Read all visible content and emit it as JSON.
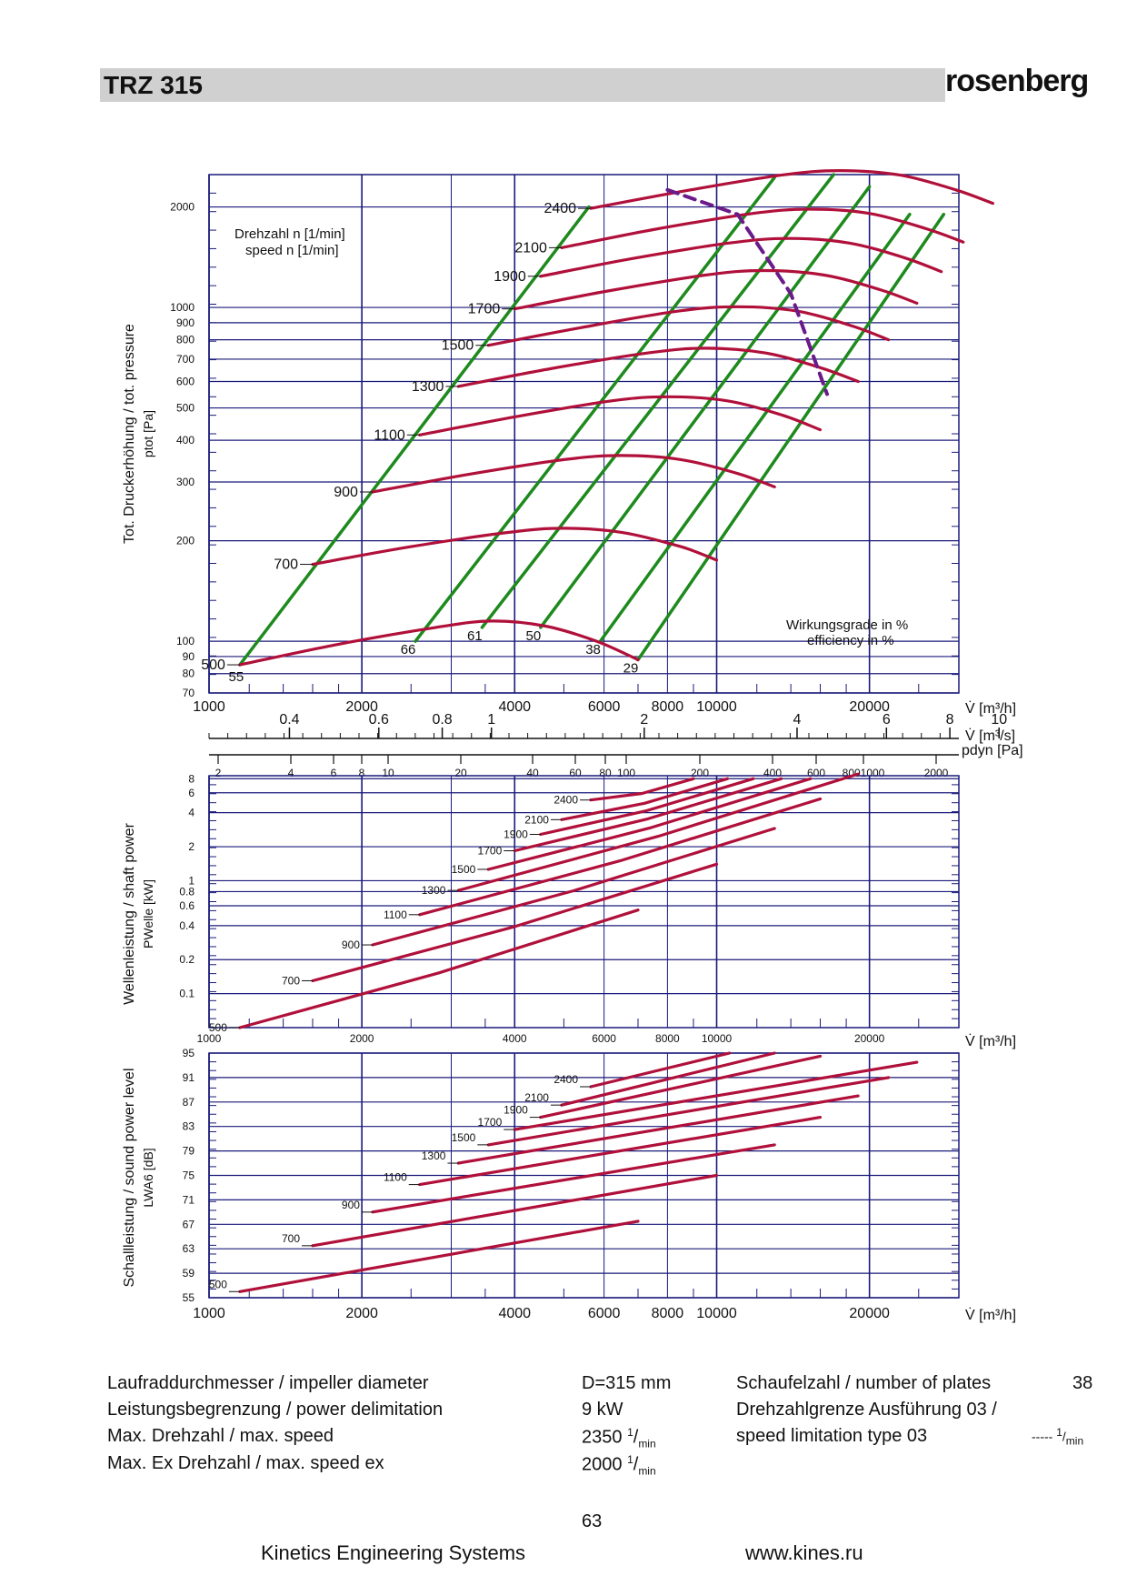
{
  "header": {
    "title": "TRZ 315",
    "logo": "rosenberg"
  },
  "chart_data": [
    {
      "type": "line",
      "ylabel": "Tot. Druckerhöhung / tot. pressure",
      "ylabel2": "ptot [Pa]",
      "xlabel": "V̇ [m³/h]",
      "xlabel_ms": "V̇ [m³/s]",
      "xlabel_pdyn": "pdyn [Pa]",
      "speed_label_de": "Drehzahl n [1/min]",
      "speed_label_en": "speed n [1/min]",
      "eff_label_de": "Wirkungsgrade in %",
      "eff_label_en": "efficiency in %",
      "x_scale": "log",
      "y_scale": "log",
      "xlim": [
        1000,
        30000
      ],
      "ylim": [
        70,
        2500
      ],
      "x_ticks": [
        "1000",
        "2000",
        "4000",
        "6000",
        "8000",
        "10000",
        "20000"
      ],
      "x_ticks_ms": [
        "0.4",
        "0.6",
        "0.8",
        "1",
        "2",
        "4",
        "6",
        "8",
        "10"
      ],
      "x_ticks_pdyn": [
        "2",
        "4",
        "6",
        "8",
        "10",
        "20",
        "40",
        "60",
        "80",
        "100",
        "200",
        "400",
        "600",
        "8001000",
        "2000"
      ],
      "y_ticks": [
        "2000",
        "1000",
        "900",
        "800",
        "700",
        "600",
        "500",
        "400",
        "300",
        "200",
        "100",
        "90",
        "80",
        "70"
      ],
      "series": [
        {
          "name": "500",
          "x": [
            1150,
            1800,
            2800,
            3600,
            4600,
            5800,
            7000
          ],
          "y": [
            85,
            98,
            110,
            115,
            111,
            100,
            88
          ]
        },
        {
          "name": "700",
          "x": [
            1600,
            2500,
            3900,
            5000,
            6500,
            8500,
            10000
          ],
          "y": [
            170,
            192,
            212,
            218,
            212,
            192,
            175
          ]
        },
        {
          "name": "900",
          "x": [
            2100,
            3200,
            5000,
            6500,
            8500,
            11000,
            13000
          ],
          "y": [
            280,
            315,
            350,
            360,
            350,
            318,
            290
          ]
        },
        {
          "name": "1100",
          "x": [
            2600,
            4000,
            6200,
            8000,
            10500,
            13500,
            16000
          ],
          "y": [
            415,
            470,
            525,
            540,
            525,
            475,
            430
          ]
        },
        {
          "name": "1300",
          "x": [
            3100,
            4700,
            7300,
            9500,
            12500,
            16000,
            19000
          ],
          "y": [
            580,
            655,
            730,
            755,
            730,
            660,
            600
          ]
        },
        {
          "name": "1500",
          "x": [
            3550,
            5400,
            8400,
            11000,
            14400,
            18500,
            21800
          ],
          "y": [
            770,
            870,
            975,
            1005,
            975,
            880,
            800
          ]
        },
        {
          "name": "1700",
          "x": [
            4000,
            6100,
            9500,
            12400,
            16300,
            21000,
            24800
          ],
          "y": [
            990,
            1120,
            1250,
            1290,
            1250,
            1130,
            1030
          ]
        },
        {
          "name": "1900",
          "x": [
            4500,
            6800,
            10600,
            13900,
            18200,
            23400,
            27700
          ],
          "y": [
            1240,
            1400,
            1560,
            1610,
            1560,
            1410,
            1280
          ]
        },
        {
          "name": "2100",
          "x": [
            4950,
            7500,
            11700,
            15300,
            20100,
            25900,
            30600
          ],
          "y": [
            1510,
            1710,
            1910,
            1970,
            1910,
            1720,
            1570
          ]
        },
        {
          "name": "2400",
          "x": [
            5650,
            8600,
            13400,
            17500,
            23000,
            29600,
            35000
          ],
          "y": [
            1980,
            2230,
            2490,
            2570,
            2490,
            2250,
            2050
          ]
        }
      ],
      "efficiency_lines": [
        {
          "name": "55",
          "x": [
            1150,
            5600
          ],
          "y": [
            85,
            2000
          ]
        },
        {
          "name": "66",
          "x": [
            2550,
            13000
          ],
          "y": [
            100,
            2450
          ]
        },
        {
          "name": "61",
          "x": [
            3450,
            17000
          ],
          "y": [
            110,
            2500
          ]
        },
        {
          "name": "50",
          "x": [
            4500,
            20000
          ],
          "y": [
            110,
            2300
          ]
        },
        {
          "name": "38",
          "x": [
            5900,
            24000
          ],
          "y": [
            100,
            1900
          ]
        },
        {
          "name": "29",
          "x": [
            7000,
            28000
          ],
          "y": [
            88,
            1900
          ]
        }
      ],
      "speed_limit": {
        "x": [
          8000,
          11000,
          14000,
          16500
        ],
        "y": [
          2250,
          1900,
          1100,
          550
        ]
      },
      "series_labels": [
        "500",
        "700",
        "900",
        "1100",
        "1300",
        "1500",
        "1700",
        "1900",
        "2100",
        "2400"
      ]
    },
    {
      "type": "line",
      "ylabel": "Wellenleistung / shaft power",
      "ylabel2": "PWelle [kW]",
      "xlabel": "V̇ [m³/h]",
      "x_scale": "log",
      "y_scale": "log",
      "xlim": [
        1000,
        30000
      ],
      "ylim": [
        0.05,
        8
      ],
      "x_ticks": [
        "1000",
        "2000",
        "4000",
        "6000",
        "8000",
        "10000",
        "20000"
      ],
      "y_ticks": [
        "8",
        "6",
        "4",
        "2",
        "1",
        "0.8",
        "0.6",
        "0.4",
        "0.2",
        "0.1"
      ],
      "series": [
        {
          "name": "500",
          "x": [
            1150,
            7000
          ],
          "y": [
            0.05,
            0.55
          ]
        },
        {
          "name": "700",
          "x": [
            1600,
            10000
          ],
          "y": [
            0.13,
            1.4
          ]
        },
        {
          "name": "900",
          "x": [
            2100,
            13000
          ],
          "y": [
            0.27,
            2.9
          ]
        },
        {
          "name": "1100",
          "x": [
            2600,
            16000
          ],
          "y": [
            0.5,
            5.3
          ]
        },
        {
          "name": "1300",
          "x": [
            3100,
            19000
          ],
          "y": [
            0.82,
            8.8
          ]
        },
        {
          "name": "1500",
          "x": [
            3550,
            15300
          ],
          "y": [
            1.26,
            8.0
          ]
        },
        {
          "name": "1700",
          "x": [
            4000,
            13400
          ],
          "y": [
            1.84,
            8.0
          ]
        },
        {
          "name": "1900",
          "x": [
            4500,
            11800
          ],
          "y": [
            2.57,
            8.0
          ]
        },
        {
          "name": "2100",
          "x": [
            4950,
            10500
          ],
          "y": [
            3.47,
            8.0
          ]
        },
        {
          "name": "2400",
          "x": [
            5650,
            9000
          ],
          "y": [
            5.18,
            8.0
          ]
        }
      ]
    },
    {
      "type": "line",
      "ylabel": "Schallleistung / sound power level",
      "ylabel2": "LWA6 [dB]",
      "xlabel": "V̇ [m³/h]",
      "x_scale": "log",
      "y_scale": "linear",
      "xlim": [
        1000,
        30000
      ],
      "ylim": [
        55,
        95
      ],
      "x_ticks": [
        "1000",
        "2000",
        "4000",
        "6000",
        "8000",
        "10000",
        "20000"
      ],
      "y_ticks": [
        "95",
        "91",
        "87",
        "83",
        "79",
        "75",
        "71",
        "67",
        "63",
        "59",
        "55"
      ],
      "series": [
        {
          "name": "500",
          "x": [
            1150,
            7000
          ],
          "y": [
            56,
            67.5
          ]
        },
        {
          "name": "700",
          "x": [
            1600,
            10000
          ],
          "y": [
            63.5,
            75
          ]
        },
        {
          "name": "900",
          "x": [
            2100,
            13000
          ],
          "y": [
            69,
            80
          ]
        },
        {
          "name": "1100",
          "x": [
            2600,
            16000
          ],
          "y": [
            73.5,
            84.5
          ]
        },
        {
          "name": "1300",
          "x": [
            3100,
            19000
          ],
          "y": [
            77,
            88
          ]
        },
        {
          "name": "1500",
          "x": [
            3550,
            21800
          ],
          "y": [
            80,
            91
          ]
        },
        {
          "name": "1700",
          "x": [
            4000,
            24800
          ],
          "y": [
            82.5,
            93.5
          ]
        },
        {
          "name": "1900",
          "x": [
            4500,
            16000
          ],
          "y": [
            84.5,
            94.5
          ]
        },
        {
          "name": "2100",
          "x": [
            4950,
            13000
          ],
          "y": [
            86.5,
            95
          ]
        },
        {
          "name": "2400",
          "x": [
            5650,
            10600
          ],
          "y": [
            89.5,
            95
          ]
        }
      ]
    }
  ],
  "specs": {
    "impeller_label": "Laufraddurchmesser / impeller diameter",
    "impeller_value": "D=315 mm",
    "power_label": "Leistungsbegrenzung / power delimitation",
    "power_value": "9 kW",
    "maxspeed_label": "Max. Drehzahl / max. speed",
    "maxspeed_value": "2350",
    "maxspeedex_label": "Max. Ex Drehzahl / max. speed ex",
    "maxspeedex_value": "2000",
    "plates_label": "Schaufelzahl / number of plates",
    "plates_value": "38",
    "speedlimit_label1": "Drehzahlgrenze Ausführung 03 /",
    "speedlimit_label2": "speed limitation type 03",
    "speedlimit_value": "-----",
    "unit_num": "1",
    "unit_den": "min"
  },
  "footer": {
    "page": "63",
    "company": "Kinetics Engineering Systems",
    "url": "www.kines.ru"
  },
  "colors": {
    "curve": "#b0103a",
    "efficiency": "#1e8a1e",
    "limit": "#6a1b8a",
    "grid": "#1a1a7a"
  }
}
